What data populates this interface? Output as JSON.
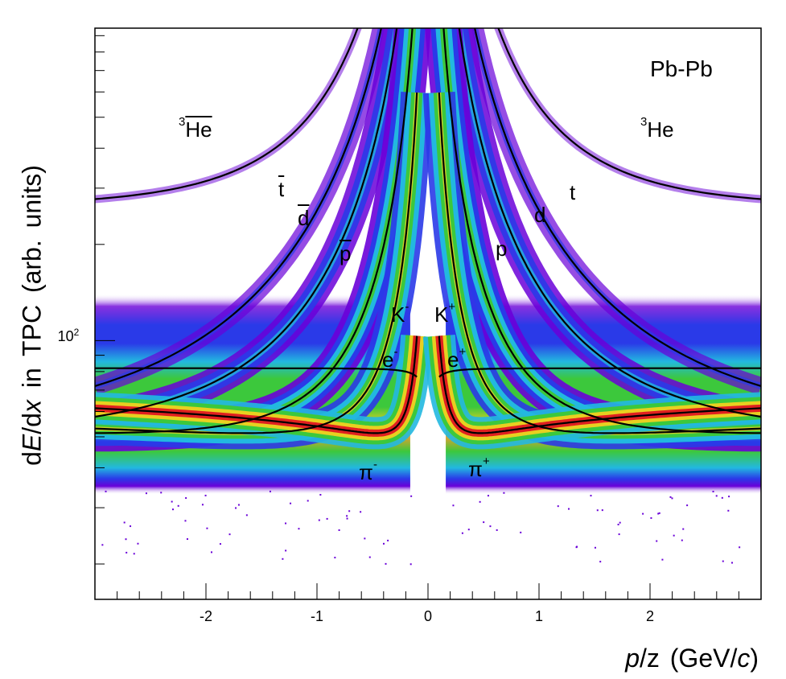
{
  "chart_data": {
    "type": "heatmap",
    "title": "",
    "system_label": "Pb-Pb",
    "xlabel": {
      "italic_1": "p",
      "text_1": "/z",
      "text_2": "(GeV/",
      "italic_2": "c",
      "text_3": ")"
    },
    "ylabel": {
      "text_1": "d",
      "italic_1": "E",
      "text_2": "/d",
      "italic_2": "x",
      "text_3": "in TPC (arb. units)"
    },
    "xlim": [
      -3,
      3
    ],
    "ylim": [
      15.5,
      950
    ],
    "y_scale": "log",
    "x_ticks": [
      "-2",
      "-1",
      "0",
      "1",
      "2"
    ],
    "x_tick_values": [
      -2,
      -1,
      0,
      1,
      2
    ],
    "y_ticks": [
      {
        "base": "10",
        "exp": "2",
        "value": 100
      }
    ],
    "grid": false,
    "colormap": [
      "#6a00d8",
      "#2a3ae8",
      "#22b8e0",
      "#3cc83c",
      "#e8d020",
      "#e02020"
    ],
    "line_color": "#000000",
    "expected_curves": [
      "e",
      "pi",
      "K",
      "p",
      "d",
      "t",
      "3He"
    ],
    "annotations": [
      {
        "id": "he3-neg",
        "pre": "3",
        "base": "He",
        "sup": "",
        "anti": true
      },
      {
        "id": "he3-pos",
        "pre": "3",
        "base": "He",
        "sup": "",
        "anti": false
      },
      {
        "id": "t-neg",
        "pre": "",
        "base": "t",
        "sup": "",
        "anti": true
      },
      {
        "id": "d-neg",
        "pre": "",
        "base": "d",
        "sup": "",
        "anti": true
      },
      {
        "id": "p-neg",
        "pre": "",
        "base": "p",
        "sup": "",
        "anti": true
      },
      {
        "id": "k-neg",
        "pre": "",
        "base": "K",
        "sup": "-",
        "anti": false
      },
      {
        "id": "e-neg",
        "pre": "",
        "base": "e",
        "sup": "-",
        "anti": false
      },
      {
        "id": "pi-neg",
        "pre": "",
        "base": "π",
        "sup": "-",
        "anti": false
      },
      {
        "id": "k-pos",
        "pre": "",
        "base": "K",
        "sup": "+",
        "anti": false
      },
      {
        "id": "e-pos",
        "pre": "",
        "base": "e",
        "sup": "+",
        "anti": false
      },
      {
        "id": "pi-pos",
        "pre": "",
        "base": "π",
        "sup": "+",
        "anti": false
      },
      {
        "id": "p-pos",
        "pre": "",
        "base": "p",
        "sup": "",
        "anti": false
      },
      {
        "id": "d-pos",
        "pre": "",
        "base": "d",
        "sup": "",
        "anti": false
      },
      {
        "id": "t-pos",
        "pre": "",
        "base": "t",
        "sup": "",
        "anti": false
      }
    ]
  }
}
